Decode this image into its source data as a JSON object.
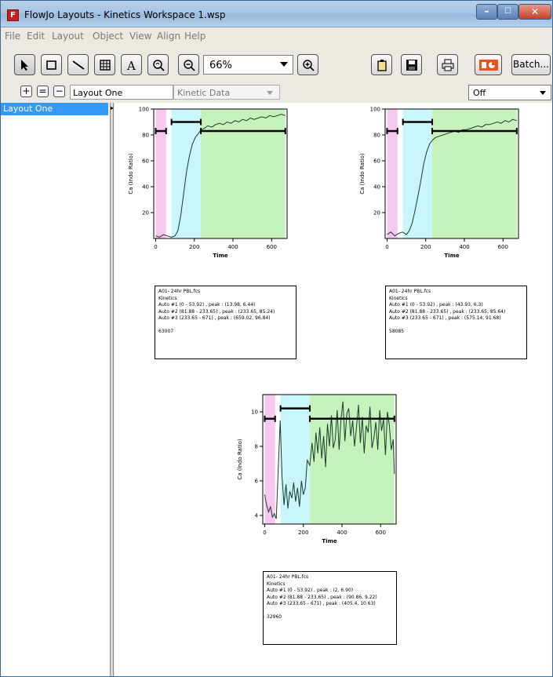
{
  "window": {
    "title": "FlowJo Layouts - Kinetics Workspace 1.wsp",
    "app_icon": "flowjo-logo-icon",
    "controls": [
      "minimize-icon",
      "maximize-icon",
      "close-icon"
    ]
  },
  "menu": {
    "items": [
      {
        "label": "File"
      },
      {
        "label": "Edit"
      },
      {
        "label": "Layout"
      },
      {
        "label": "Object"
      },
      {
        "label": "View"
      },
      {
        "label": "Align"
      },
      {
        "label": "Help"
      }
    ]
  },
  "toolbar": {
    "tools": [
      "arrow-icon",
      "rectangle-icon",
      "line-icon",
      "table-icon",
      "text-icon",
      "magnify-icon"
    ],
    "zoom_value": "66%",
    "right_tools": [
      "clipboard-icon",
      "save-icon",
      "print-icon",
      "powerpoint-icon"
    ],
    "batch_label": "Batch..."
  },
  "layoutbar": {
    "add": "+",
    "equals": "=",
    "remove": "−",
    "layout_name": "Layout One",
    "kinetic_select": "Kinetic Data",
    "off_select": "Off"
  },
  "sidebar": {
    "items": [
      {
        "label": "Layout One"
      }
    ]
  },
  "colors": {
    "gate1_fill": "#f7c8f0",
    "gate2_fill": "#c8f6fa",
    "gate3_fill": "#c6f2bc",
    "selection": "#3399ff",
    "window_bg": "#ece9e2"
  },
  "plots": [
    {
      "ylabel": "Ca (Indo Ratio)",
      "xlabel": "Time",
      "legend": {
        "lines": [
          "A01- 24hr PBL.fcs",
          "Kinetics",
          "Auto #1 (0 - 53.92) , peak : (13.98, 6.44)",
          "Auto #2 (81.88 - 233.65) , peak : (233.65, 85.24)",
          "Auto #3 (233.65 - 671) , peak : (659.02, 96.84)",
          "",
          "63007"
        ]
      }
    },
    {
      "ylabel": "Ca (Indo Ratio)",
      "xlabel": "Time",
      "legend": {
        "lines": [
          "A01- 24hr PBL.fcs",
          "Kinetics",
          "Auto #1 (0 - 53.92) , peak : (43.93, 6.3)",
          "Auto #2 (81.88 - 233.65) , peak : (233.65, 85.64)",
          "Auto #3 (233.65 - 671) , peak : (575.14, 91.68)",
          "",
          "58085"
        ]
      }
    },
    {
      "ylabel": "Ca (Indo Ratio)",
      "xlabel": "Time",
      "legend": {
        "lines": [
          "A01- 24hr PBL.fcs",
          "Kinetics",
          "Auto #1 (0 - 53.92) , peak : (2, 6.90)",
          "Auto #2 (81.88 - 233.65) , peak : (90.86, 9.22)",
          "Auto #3 (233.65 - 671) , peak : (405.4, 10.63)",
          "",
          "32960"
        ]
      }
    }
  ],
  "chart_data": [
    {
      "type": "line",
      "xlabel": "Time",
      "ylabel": "Ca (Indo Ratio)",
      "xlim": [
        -10,
        680
      ],
      "ylim": [
        0,
        100
      ],
      "xticks": [
        0,
        200,
        400,
        600
      ],
      "yticks": [
        20,
        40,
        60,
        80,
        100
      ],
      "regions": [
        [
          0,
          53.92
        ],
        [
          81.88,
          233.65
        ],
        [
          233.65,
          671
        ]
      ],
      "gate_levels": [
        83,
        90,
        83
      ],
      "x": [
        0,
        20,
        40,
        60,
        80,
        100,
        115,
        130,
        145,
        160,
        175,
        190,
        205,
        220,
        235,
        250,
        270,
        290,
        310,
        330,
        350,
        370,
        390,
        410,
        430,
        450,
        470,
        490,
        510,
        530,
        550,
        570,
        590,
        610,
        630,
        650,
        671
      ],
      "y": [
        2,
        1,
        3,
        2,
        1,
        2,
        6,
        18,
        35,
        52,
        64,
        73,
        78,
        81,
        84,
        85,
        87,
        86,
        88,
        89,
        88,
        90,
        89,
        91,
        90,
        92,
        91,
        93,
        92,
        93,
        94,
        93,
        95,
        94,
        95,
        96,
        95
      ]
    },
    {
      "type": "line",
      "xlabel": "Time",
      "ylabel": "Ca (Indo Ratio)",
      "xlim": [
        -10,
        680
      ],
      "ylim": [
        0,
        100
      ],
      "xticks": [
        0,
        200,
        400,
        600
      ],
      "yticks": [
        20,
        40,
        60,
        80,
        100
      ],
      "regions": [
        [
          0,
          53.92
        ],
        [
          81.88,
          233.65
        ],
        [
          233.65,
          671
        ]
      ],
      "gate_levels": [
        83,
        90,
        83
      ],
      "x": [
        0,
        20,
        40,
        60,
        80,
        100,
        115,
        130,
        145,
        160,
        175,
        190,
        205,
        220,
        235,
        250,
        270,
        290,
        310,
        330,
        350,
        370,
        390,
        410,
        430,
        450,
        470,
        490,
        510,
        530,
        550,
        570,
        590,
        610,
        630,
        650,
        671
      ],
      "y": [
        3,
        5,
        2,
        4,
        5,
        3,
        6,
        12,
        22,
        33,
        45,
        58,
        67,
        73,
        76,
        78,
        79,
        80,
        81,
        82,
        83,
        82,
        84,
        84,
        85,
        86,
        87,
        86,
        88,
        88,
        89,
        90,
        89,
        91,
        90,
        92,
        91
      ]
    },
    {
      "type": "line",
      "xlabel": "Time",
      "ylabel": "Ca (Indo Ratio)",
      "xlim": [
        -10,
        680
      ],
      "ylim": [
        3.5,
        11
      ],
      "xticks": [
        0,
        200,
        400,
        600
      ],
      "yticks": [
        4,
        6,
        8,
        10
      ],
      "regions": [
        [
          0,
          53.92
        ],
        [
          81.88,
          233.65
        ],
        [
          233.65,
          671
        ]
      ],
      "gate_levels": [
        9.6,
        10.2,
        9.6
      ],
      "x": [
        0,
        10,
        20,
        30,
        40,
        50,
        60,
        80,
        90,
        100,
        110,
        120,
        130,
        140,
        150,
        160,
        170,
        180,
        190,
        200,
        210,
        220,
        233,
        245,
        255,
        265,
        275,
        285,
        295,
        305,
        315,
        325,
        335,
        345,
        355,
        365,
        375,
        385,
        395,
        405,
        415,
        425,
        435,
        445,
        455,
        465,
        475,
        485,
        495,
        505,
        515,
        525,
        535,
        545,
        555,
        565,
        575,
        585,
        595,
        605,
        615,
        625,
        635,
        645,
        655,
        665,
        671
      ],
      "y": [
        5.2,
        4.6,
        4.2,
        4.5,
        3.9,
        4.1,
        3.8,
        9.5,
        6.2,
        4.6,
        5.8,
        4.4,
        5.4,
        5.0,
        5.9,
        4.8,
        5.6,
        4.5,
        6.0,
        5.2,
        5.6,
        7.2,
        6.9,
        8.2,
        7.1,
        8.8,
        7.6,
        9.1,
        7.3,
        8.6,
        6.8,
        9.3,
        8.0,
        9.8,
        7.9,
        8.4,
        10.1,
        7.8,
        9.6,
        10.6,
        8.3,
        9.9,
        10.2,
        8.6,
        9.5,
        8.0,
        9.1,
        10.4,
        8.2,
        9.7,
        7.6,
        9.2,
        8.8,
        10.3,
        7.9,
        8.5,
        9.4,
        7.8,
        10.1,
        8.9,
        9.6,
        7.5,
        10.0,
        9.2,
        7.8,
        8.4,
        6.4
      ]
    }
  ]
}
